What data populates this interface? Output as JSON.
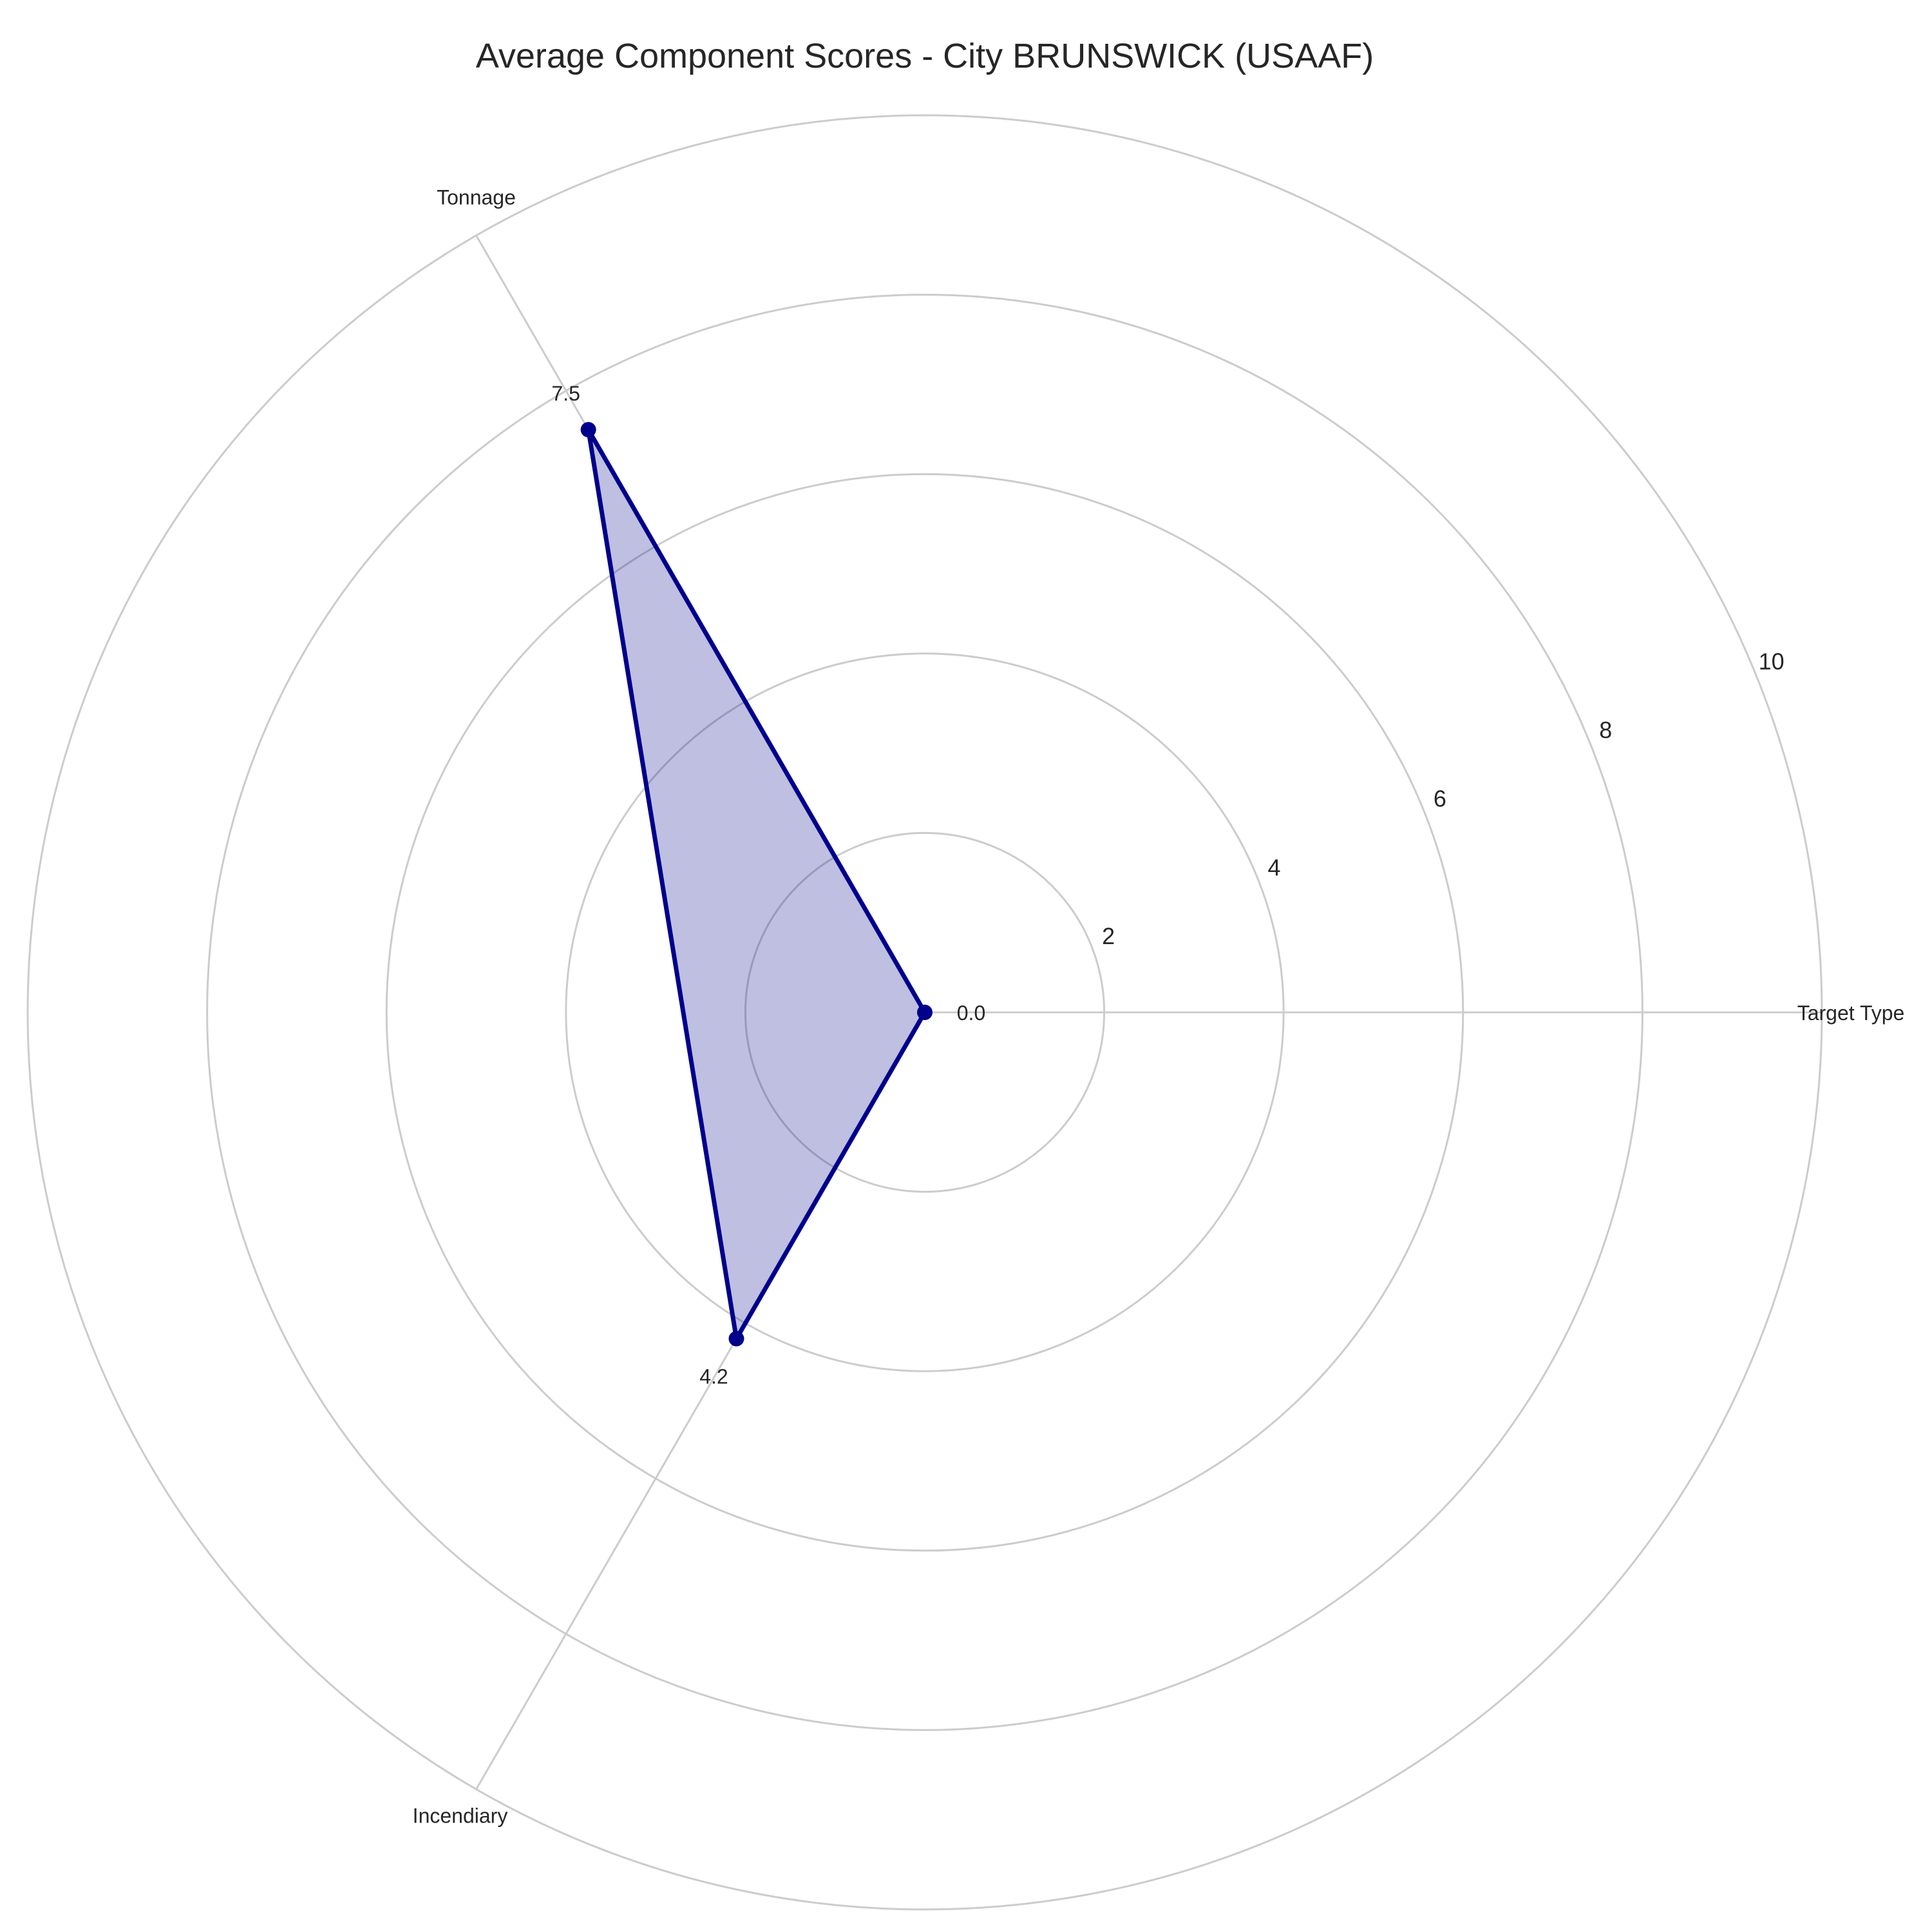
{
  "chart_data": {
    "type": "radar",
    "title": "Average Component Scores - City BRUNSWICK (USAAF)",
    "categories": [
      "Target Type",
      "Tonnage",
      "Incendiary"
    ],
    "series": [
      {
        "values": [
          0.0,
          7.5,
          4.2
        ],
        "value_labels": [
          "0.0",
          "7.5",
          "4.2"
        ]
      }
    ],
    "r_ticks": [
      2,
      4,
      6,
      8,
      10
    ],
    "r_tick_labels": [
      "2",
      "4",
      "6",
      "8",
      "10"
    ],
    "rlim": [
      0,
      10
    ],
    "grid": true,
    "colors": {
      "line": "#00008b",
      "fill": "#00008b",
      "grid": "#cccccc",
      "text": "#262626"
    }
  }
}
